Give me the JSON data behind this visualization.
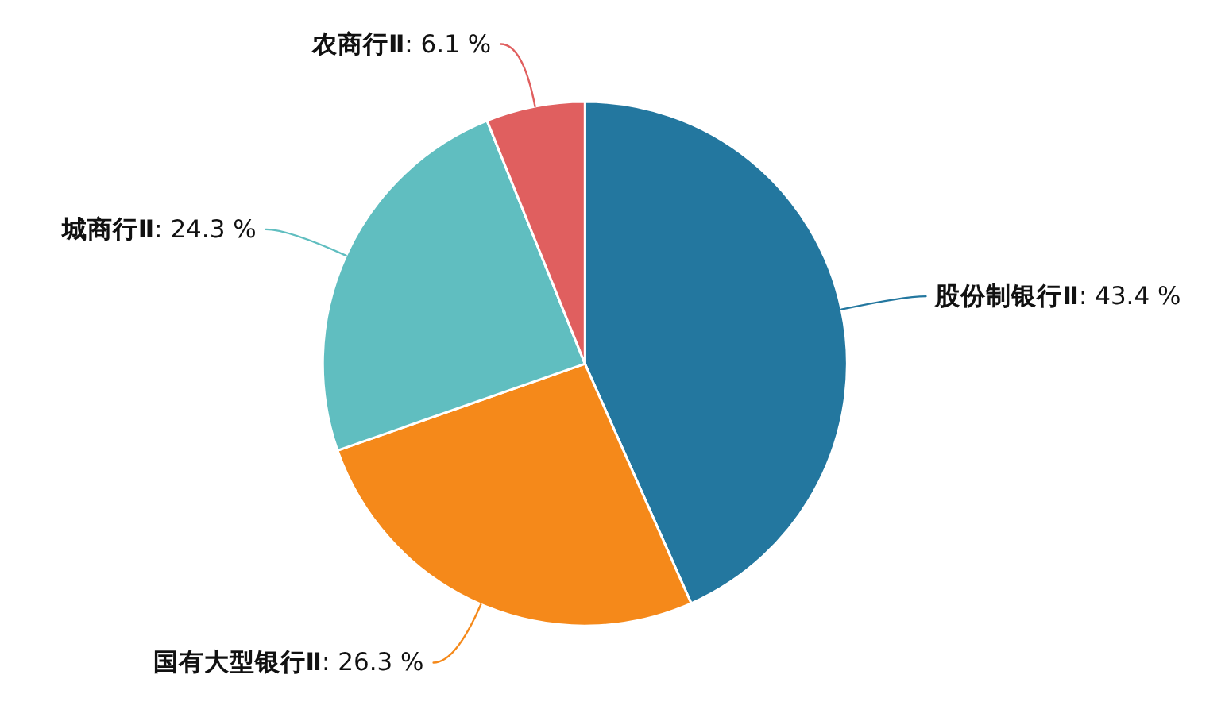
{
  "chart_data": {
    "type": "pie",
    "categories": [
      "股份制银行Ⅱ",
      "国有大型银行Ⅱ",
      "城商行Ⅱ",
      "农商行Ⅱ"
    ],
    "values": [
      43.4,
      26.3,
      24.3,
      6.1
    ],
    "value_labels": [
      ": 43.4 %",
      ": 26.3 %",
      ": 24.3 %",
      ": 6.1 %"
    ],
    "colors": [
      "#23779f",
      "#f5891a",
      "#60bec0",
      "#e05f5f"
    ]
  }
}
